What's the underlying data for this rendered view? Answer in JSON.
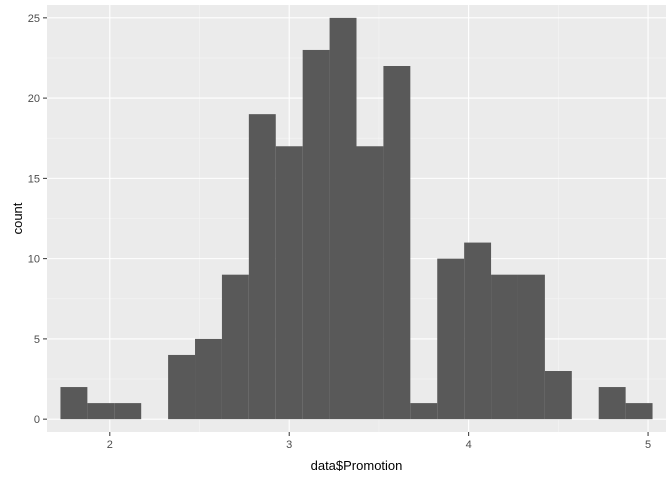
{
  "chart_data": {
    "type": "bar",
    "title": "",
    "xlabel": "data$Promotion",
    "ylabel": "count",
    "xlim": [
      1.65,
      5.1
    ],
    "ylim": [
      -0.8,
      25.8
    ],
    "x_ticks": [
      2,
      3,
      4,
      5
    ],
    "y_ticks": [
      0,
      5,
      10,
      15,
      20,
      25
    ],
    "grid": true,
    "bin_width": 0.15,
    "bins": [
      {
        "x_start": 1.725,
        "x_end": 1.875,
        "count": 2
      },
      {
        "x_start": 1.875,
        "x_end": 2.025,
        "count": 1
      },
      {
        "x_start": 2.025,
        "x_end": 2.175,
        "count": 1
      },
      {
        "x_start": 2.175,
        "x_end": 2.325,
        "count": 0
      },
      {
        "x_start": 2.325,
        "x_end": 2.475,
        "count": 4
      },
      {
        "x_start": 2.475,
        "x_end": 2.625,
        "count": 5
      },
      {
        "x_start": 2.625,
        "x_end": 2.775,
        "count": 9
      },
      {
        "x_start": 2.775,
        "x_end": 2.925,
        "count": 19
      },
      {
        "x_start": 2.925,
        "x_end": 3.075,
        "count": 17
      },
      {
        "x_start": 3.075,
        "x_end": 3.225,
        "count": 23
      },
      {
        "x_start": 3.225,
        "x_end": 3.375,
        "count": 25
      },
      {
        "x_start": 3.375,
        "x_end": 3.525,
        "count": 17
      },
      {
        "x_start": 3.525,
        "x_end": 3.675,
        "count": 22
      },
      {
        "x_start": 3.675,
        "x_end": 3.825,
        "count": 1
      },
      {
        "x_start": 3.825,
        "x_end": 3.975,
        "count": 10
      },
      {
        "x_start": 3.975,
        "x_end": 4.125,
        "count": 11
      },
      {
        "x_start": 4.125,
        "x_end": 4.275,
        "count": 9
      },
      {
        "x_start": 4.275,
        "x_end": 4.425,
        "count": 9
      },
      {
        "x_start": 4.425,
        "x_end": 4.575,
        "count": 3
      },
      {
        "x_start": 4.575,
        "x_end": 4.725,
        "count": 0
      },
      {
        "x_start": 4.725,
        "x_end": 4.875,
        "count": 2
      },
      {
        "x_start": 4.875,
        "x_end": 5.025,
        "count": 1
      }
    ],
    "colors": {
      "panel_background": "#ebebeb",
      "grid_major": "#ffffff",
      "grid_minor": "#f5f5f5",
      "bar_fill": "#595959",
      "tick_mark": "#333333"
    }
  }
}
